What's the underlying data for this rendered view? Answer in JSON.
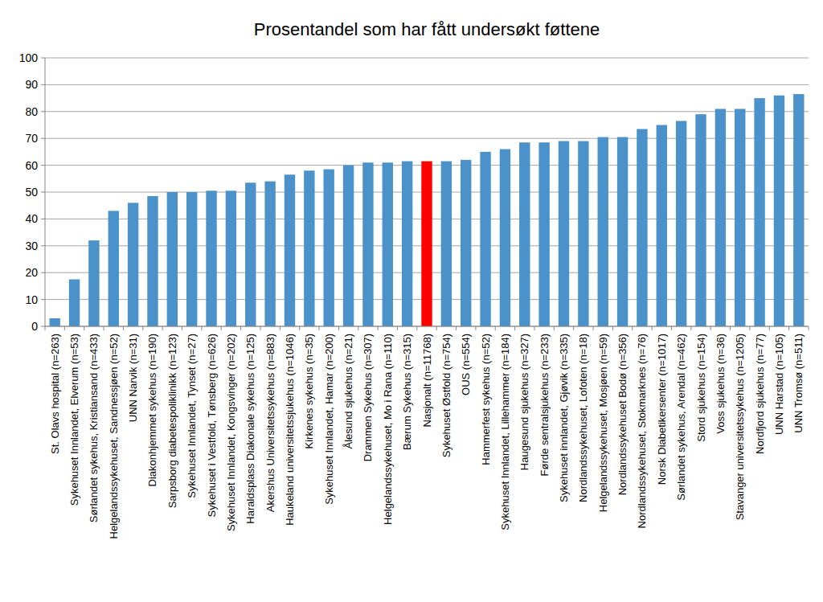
{
  "chart_data": {
    "type": "bar",
    "title": "Prosentandel som har fått undersøkt føttene",
    "categories": [
      "St. Olavs hospital (n=263)",
      "Sykehuset Innlandet, Elverum (n=53)",
      "Sørlandet sykehus, Kristiansand (n=433)",
      "Helgelandssykehuset, Sandnessjøen (n=52)",
      "UNN Narvik (n=31)",
      "Diakonhjemmet sykehus (n=190)",
      "Sarpsborg diabetespoliklinikk (n=123)",
      "Sykehuset Innlandet, Tynset (n=27)",
      "Sykehuset i Vestfold, Tønsberg (n=626)",
      "Sykehuset Innlandet, Kongsvinger (n=202)",
      "Haraldsplass Diakonale sykehus (n=125)",
      "Akershus Universitetssykehus (n=883)",
      "Haukeland universitetssjukehus (n=1046)",
      "Kirkenes sykehus (n=35)",
      "Sykehuset Innlandet, Hamar (n=200)",
      "Ålesund sjukehus (n=21)",
      "Drammen Sykehus (n=307)",
      "Helgelandssykehuset, Mo i Rana (n=110)",
      "Bærum Sykehus (n=315)",
      "Nasjonalt (n=11768)",
      "Sykehuset Østfold (n=754)",
      "OUS (n=554)",
      "Hammerfest sykehus (n=52)",
      "Sykehuset Innlandet, Lillehammer (n=184)",
      "Haugesund sjukehus (n=327)",
      "Førde sentralsjukehus (n=233)",
      "Sykehuset innlandet, Gjøvik (n=335)",
      "Nordlandssykehuset, Lofoten (n=18)",
      "Helgelandssykehuset, Mosjøen (n=59)",
      "Nordlandssykehuset Bodø (n=356)",
      "Nordlandssykehuset, Stokmarknes (n=76)",
      "Norsk Diabetikersenter (n=1017)",
      "Sørlandet sykehus, Arendal (n=462)",
      "Stord sjukehus (n=154)",
      "Voss sjukehus (n=36)",
      "Stavanger universitetssykehus (n=1205)",
      "Nordfjord sjukehus (n=77)",
      "UNN Harstad (n=105)",
      "UNN Tromsø (n=511)"
    ],
    "values": [
      3,
      17.5,
      32,
      43,
      46,
      48.5,
      50,
      50,
      50.5,
      50.5,
      53.5,
      54,
      56.5,
      58,
      58.5,
      60,
      61,
      61,
      61.5,
      61.5,
      61.5,
      62,
      65,
      66,
      68.5,
      68.5,
      69,
      69,
      70.5,
      70.5,
      73.5,
      75,
      76.5,
      79,
      81,
      81,
      85,
      86,
      86.5
    ],
    "colors": [
      "#4a92c9",
      "#4a92c9",
      "#4a92c9",
      "#4a92c9",
      "#4a92c9",
      "#4a92c9",
      "#4a92c9",
      "#4a92c9",
      "#4a92c9",
      "#4a92c9",
      "#4a92c9",
      "#4a92c9",
      "#4a92c9",
      "#4a92c9",
      "#4a92c9",
      "#4a92c9",
      "#4a92c9",
      "#4a92c9",
      "#4a92c9",
      "#ff0000",
      "#4a92c9",
      "#4a92c9",
      "#4a92c9",
      "#4a92c9",
      "#4a92c9",
      "#4a92c9",
      "#4a92c9",
      "#4a92c9",
      "#4a92c9",
      "#4a92c9",
      "#4a92c9",
      "#4a92c9",
      "#4a92c9",
      "#4a92c9",
      "#4a92c9",
      "#4a92c9",
      "#4a92c9",
      "#4a92c9",
      "#4a92c9"
    ],
    "ylim": [
      0,
      100
    ],
    "yticks": [
      0,
      10,
      20,
      30,
      40,
      50,
      60,
      70,
      80,
      90,
      100
    ],
    "grid": true
  }
}
